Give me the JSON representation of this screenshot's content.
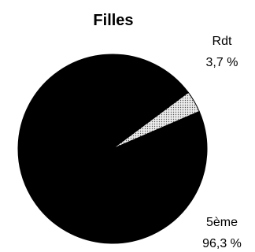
{
  "chart_data": {
    "type": "pie",
    "title": "Filles",
    "slices": [
      {
        "label": "5ème",
        "value": 96.3,
        "value_label": "96,3 %",
        "color": "#000000",
        "pattern": "solid"
      },
      {
        "label": "Rdt",
        "value": 3.7,
        "value_label": "3,7 %",
        "color": "#e6e6e6",
        "pattern": "dotted"
      }
    ],
    "legend": "none"
  }
}
